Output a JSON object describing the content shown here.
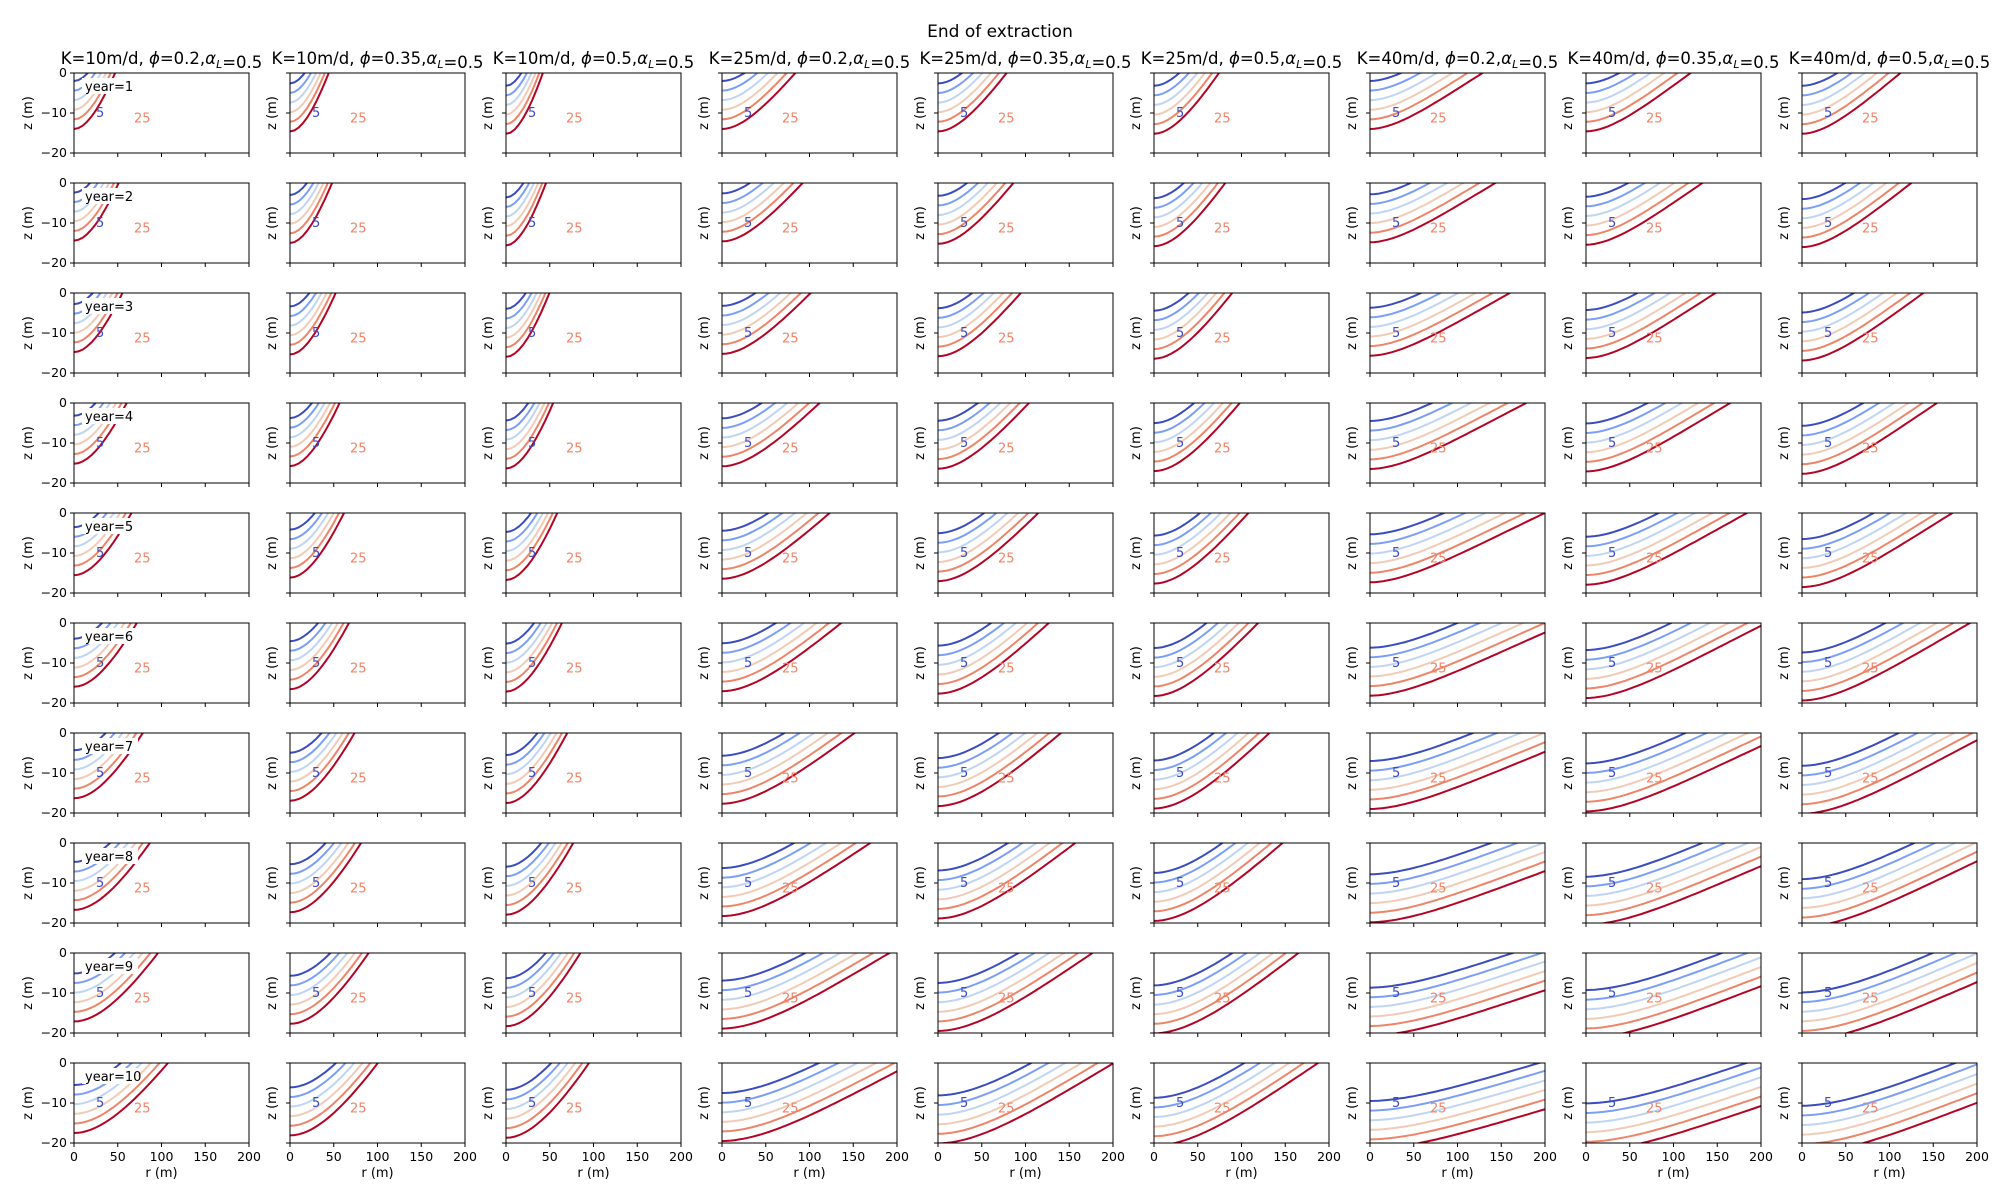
{
  "chart_data": {
    "type": "contour",
    "title": "End of extraction",
    "xlabel": "r (m)",
    "ylabel": "z (m)",
    "xlim": [
      0,
      200
    ],
    "ylim": [
      -20,
      0
    ],
    "xticks": [
      0,
      50,
      100,
      150,
      200
    ],
    "yticks": [
      0,
      -10,
      -20
    ],
    "contour_levels": [
      5,
      10,
      15,
      20,
      25,
      30
    ],
    "labeled_levels": [
      "5",
      "25"
    ],
    "level_colors": [
      "#3b4cc0",
      "#7b9ff9",
      "#c0d4f5",
      "#f2cbb7",
      "#ee8468",
      "#b40426"
    ],
    "grid": false,
    "columns": [
      {
        "label": "K=10m/d, $\\phi$=0.2,$\\alpha_L$=0.5",
        "K": "10m/d",
        "phi": "0.2",
        "alphaL": "0.5"
      },
      {
        "label": "K=10m/d, $\\phi$=0.35,$\\alpha_L$=0.5",
        "K": "10m/d",
        "phi": "0.35",
        "alphaL": "0.5"
      },
      {
        "label": "K=10m/d, $\\phi$=0.5,$\\alpha_L$=0.5",
        "K": "10m/d",
        "phi": "0.5",
        "alphaL": "0.5"
      },
      {
        "label": "K=25m/d, $\\phi$=0.2,$\\alpha_L$=0.5",
        "K": "25m/d",
        "phi": "0.2",
        "alphaL": "0.5"
      },
      {
        "label": "K=25m/d, $\\phi$=0.35,$\\alpha_L$=0.5",
        "K": "25m/d",
        "phi": "0.35",
        "alphaL": "0.5"
      },
      {
        "label": "K=25m/d, $\\phi$=0.5,$\\alpha_L$=0.5",
        "K": "25m/d",
        "phi": "0.5",
        "alphaL": "0.5"
      },
      {
        "label": "K=40m/d, $\\phi$=0.2,$\\alpha_L$=0.5",
        "K": "40m/d",
        "phi": "0.2",
        "alphaL": "0.5"
      },
      {
        "label": "K=40m/d, $\\phi$=0.35,$\\alpha_L$=0.5",
        "K": "40m/d",
        "phi": "0.35",
        "alphaL": "0.5"
      },
      {
        "label": "K=40m/d, $\\phi$=0.5,$\\alpha_L$=0.5",
        "K": "40m/d",
        "phi": "0.5",
        "alphaL": "0.5"
      }
    ],
    "rows": [
      "year=1",
      "year=2",
      "year=3",
      "year=4",
      "year=5",
      "year=6",
      "year=7",
      "year=8",
      "year=9",
      "year=10"
    ]
  }
}
